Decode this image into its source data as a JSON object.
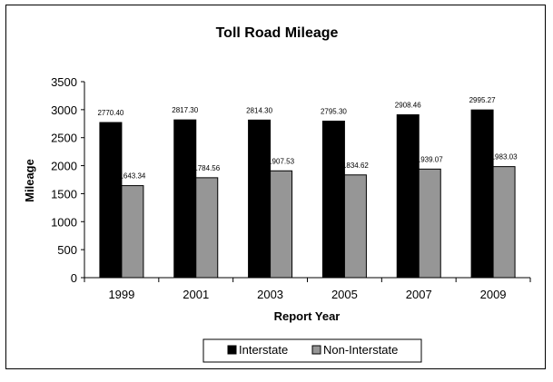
{
  "chart_data": {
    "type": "bar",
    "title": "Toll Road Mileage",
    "xlabel": "Report Year",
    "ylabel": "Mileage",
    "categories": [
      "1999",
      "2001",
      "2003",
      "2005",
      "2007",
      "2009"
    ],
    "ylim": [
      0,
      3500
    ],
    "yticks": [
      0,
      500,
      1000,
      1500,
      2000,
      2500,
      3000,
      3500
    ],
    "grid": false,
    "legend_position": "bottom",
    "series": [
      {
        "name": "Interstate",
        "color": "#000000",
        "values": [
          2770.4,
          2817.3,
          2814.3,
          2795.3,
          2908.46,
          2995.27
        ],
        "labels": [
          "2770.40",
          "2817.30",
          "2814.30",
          "2795.30",
          "2908.46",
          "2995.27"
        ]
      },
      {
        "name": "Non-Interstate",
        "color": "#969696",
        "values": [
          1643.34,
          1784.56,
          1907.53,
          1834.62,
          1939.07,
          1983.03
        ],
        "labels": [
          "1643.34",
          "1784.56",
          "1907.53",
          "1834.62",
          "1939.07",
          "1983.03"
        ]
      }
    ]
  }
}
